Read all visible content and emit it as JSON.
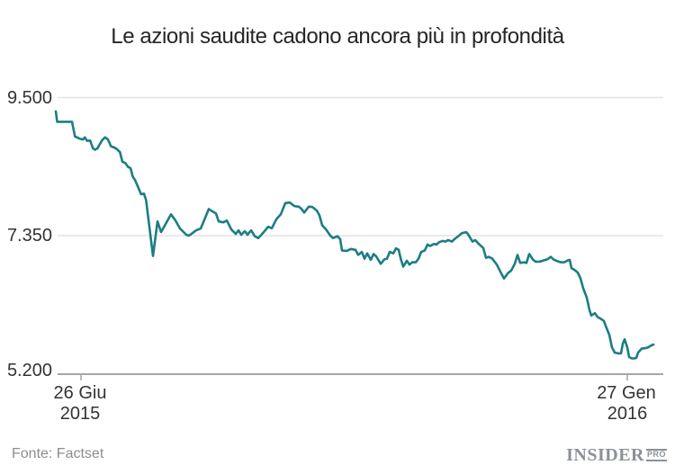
{
  "title": "Le azioni saudite cadono ancora più in profondità",
  "source": "Fonte: Factset",
  "logo": {
    "name": "INSIDER",
    "suffix": "PRO"
  },
  "colors": {
    "line": "#1b7e82",
    "grid": "#e4e4e4",
    "axis": "#a6a6a6",
    "title": "#262626",
    "label": "#333333",
    "muted": "#8e8e8e",
    "logo": "#8b919a"
  },
  "chart_data": {
    "type": "line",
    "title": "Le azioni saudite cadono ancora più in profondità",
    "grid": true,
    "legend": false,
    "y_axis": {
      "range": [
        5200,
        9500
      ],
      "ticks": [
        {
          "label": "9.500",
          "value": 9500
        },
        {
          "label": "7.350",
          "value": 7350
        },
        {
          "label": "5.200",
          "value": 5200
        }
      ]
    },
    "x_axis": {
      "ticks": [
        {
          "label": "26 Giu",
          "year": "2015",
          "t": 0.0422
        },
        {
          "label": "27 Gen",
          "year": "2016",
          "t": 0.9563
        }
      ]
    },
    "points": [
      [
        0.0,
        9280
      ],
      [
        0.0023,
        9118
      ],
      [
        0.0271,
        9118
      ],
      [
        0.0321,
        8890
      ],
      [
        0.0396,
        8857
      ],
      [
        0.0456,
        8843
      ],
      [
        0.0486,
        8876
      ],
      [
        0.0523,
        8821
      ],
      [
        0.0572,
        8829
      ],
      [
        0.0622,
        8705
      ],
      [
        0.0658,
        8683
      ],
      [
        0.0697,
        8705
      ],
      [
        0.0773,
        8829
      ],
      [
        0.0824,
        8876
      ],
      [
        0.0873,
        8843
      ],
      [
        0.0923,
        8738
      ],
      [
        0.0974,
        8719
      ],
      [
        0.1024,
        8691
      ],
      [
        0.1074,
        8646
      ],
      [
        0.1114,
        8498
      ],
      [
        0.1164,
        8476
      ],
      [
        0.1209,
        8416
      ],
      [
        0.125,
        8398
      ],
      [
        0.1291,
        8260
      ],
      [
        0.1325,
        8214
      ],
      [
        0.1375,
        8108
      ],
      [
        0.1426,
        7994
      ],
      [
        0.1476,
        8002
      ],
      [
        0.151,
        7901
      ],
      [
        0.1627,
        7034
      ],
      [
        0.1702,
        7571
      ],
      [
        0.1762,
        7406
      ],
      [
        0.1852,
        7557
      ],
      [
        0.1928,
        7681
      ],
      [
        0.2003,
        7584
      ],
      [
        0.2078,
        7460
      ],
      [
        0.2184,
        7364
      ],
      [
        0.2229,
        7350
      ],
      [
        0.2349,
        7432
      ],
      [
        0.2425,
        7460
      ],
      [
        0.256,
        7763
      ],
      [
        0.2605,
        7735
      ],
      [
        0.2681,
        7694
      ],
      [
        0.2726,
        7570
      ],
      [
        0.2801,
        7557
      ],
      [
        0.2861,
        7584
      ],
      [
        0.2937,
        7446
      ],
      [
        0.3012,
        7377
      ],
      [
        0.3057,
        7432
      ],
      [
        0.3102,
        7364
      ],
      [
        0.3163,
        7419
      ],
      [
        0.3208,
        7364
      ],
      [
        0.3268,
        7432
      ],
      [
        0.3328,
        7341
      ],
      [
        0.3389,
        7313
      ],
      [
        0.3464,
        7387
      ],
      [
        0.3554,
        7488
      ],
      [
        0.3614,
        7464
      ],
      [
        0.369,
        7602
      ],
      [
        0.3765,
        7681
      ],
      [
        0.384,
        7856
      ],
      [
        0.3916,
        7864
      ],
      [
        0.3991,
        7809
      ],
      [
        0.4066,
        7800
      ],
      [
        0.4111,
        7764
      ],
      [
        0.4157,
        7709
      ],
      [
        0.4232,
        7800
      ],
      [
        0.4292,
        7795
      ],
      [
        0.4367,
        7740
      ],
      [
        0.4413,
        7663
      ],
      [
        0.4458,
        7511
      ],
      [
        0.4518,
        7451
      ],
      [
        0.4593,
        7350
      ],
      [
        0.4639,
        7313
      ],
      [
        0.4714,
        7341
      ],
      [
        0.4759,
        7295
      ],
      [
        0.4789,
        7120
      ],
      [
        0.4865,
        7112
      ],
      [
        0.494,
        7144
      ],
      [
        0.5015,
        7130
      ],
      [
        0.506,
        7051
      ],
      [
        0.512,
        7098
      ],
      [
        0.5166,
        6992
      ],
      [
        0.5211,
        7075
      ],
      [
        0.5271,
        6974
      ],
      [
        0.5316,
        7065
      ],
      [
        0.5361,
        7029
      ],
      [
        0.5437,
        6913
      ],
      [
        0.5497,
        6982
      ],
      [
        0.5542,
        6992
      ],
      [
        0.5587,
        7098
      ],
      [
        0.5648,
        7075
      ],
      [
        0.5693,
        7153
      ],
      [
        0.5738,
        7130
      ],
      [
        0.5768,
        7006
      ],
      [
        0.5813,
        6868
      ],
      [
        0.5873,
        6960
      ],
      [
        0.5919,
        6900
      ],
      [
        0.5964,
        6937
      ],
      [
        0.6024,
        6937
      ],
      [
        0.6069,
        6992
      ],
      [
        0.6114,
        7098
      ],
      [
        0.6175,
        7120
      ],
      [
        0.622,
        7212
      ],
      [
        0.6265,
        7189
      ],
      [
        0.6325,
        7222
      ],
      [
        0.637,
        7212
      ],
      [
        0.6416,
        7249
      ],
      [
        0.6476,
        7267
      ],
      [
        0.6521,
        7258
      ],
      [
        0.6566,
        7281
      ],
      [
        0.6627,
        7258
      ],
      [
        0.6672,
        7295
      ],
      [
        0.6747,
        7350
      ],
      [
        0.6792,
        7387
      ],
      [
        0.6867,
        7405
      ],
      [
        0.6898,
        7374
      ],
      [
        0.6973,
        7258
      ],
      [
        0.7018,
        7281
      ],
      [
        0.7078,
        7222
      ],
      [
        0.7154,
        7157
      ],
      [
        0.7199,
        7006
      ],
      [
        0.7244,
        7020
      ],
      [
        0.7304,
        6992
      ],
      [
        0.738,
        6900
      ],
      [
        0.7455,
        6762
      ],
      [
        0.75,
        6685
      ],
      [
        0.7575,
        6776
      ],
      [
        0.762,
        6809
      ],
      [
        0.7681,
        6913
      ],
      [
        0.7726,
        7051
      ],
      [
        0.7771,
        6927
      ],
      [
        0.7831,
        6937
      ],
      [
        0.7877,
        6927
      ],
      [
        0.7922,
        7065
      ],
      [
        0.7982,
        6982
      ],
      [
        0.8027,
        6946
      ],
      [
        0.8102,
        6946
      ],
      [
        0.8148,
        6960
      ],
      [
        0.8223,
        6982
      ],
      [
        0.8283,
        7020
      ],
      [
        0.8328,
        6982
      ],
      [
        0.8373,
        6960
      ],
      [
        0.8449,
        6937
      ],
      [
        0.8509,
        6937
      ],
      [
        0.8554,
        6960
      ],
      [
        0.8599,
        6974
      ],
      [
        0.8629,
        6844
      ],
      [
        0.8675,
        6822
      ],
      [
        0.8735,
        6776
      ],
      [
        0.878,
        6685
      ],
      [
        0.8825,
        6533
      ],
      [
        0.8886,
        6386
      ],
      [
        0.8931,
        6193
      ],
      [
        0.8961,
        6110
      ],
      [
        0.9021,
        6147
      ],
      [
        0.9066,
        6087
      ],
      [
        0.9111,
        6064
      ],
      [
        0.9172,
        6027
      ],
      [
        0.9202,
        5949
      ],
      [
        0.9262,
        5811
      ],
      [
        0.9307,
        5614
      ],
      [
        0.9352,
        5535
      ],
      [
        0.9413,
        5522
      ],
      [
        0.9458,
        5522
      ],
      [
        0.9488,
        5673
      ],
      [
        0.9518,
        5742
      ],
      [
        0.9563,
        5614
      ],
      [
        0.9593,
        5467
      ],
      [
        0.9639,
        5444
      ],
      [
        0.9684,
        5444
      ],
      [
        0.9714,
        5452
      ],
      [
        0.9744,
        5535
      ],
      [
        0.9804,
        5596
      ],
      [
        0.9864,
        5604
      ],
      [
        0.991,
        5614
      ],
      [
        0.9955,
        5641
      ],
      [
        1.0,
        5659
      ]
    ]
  }
}
